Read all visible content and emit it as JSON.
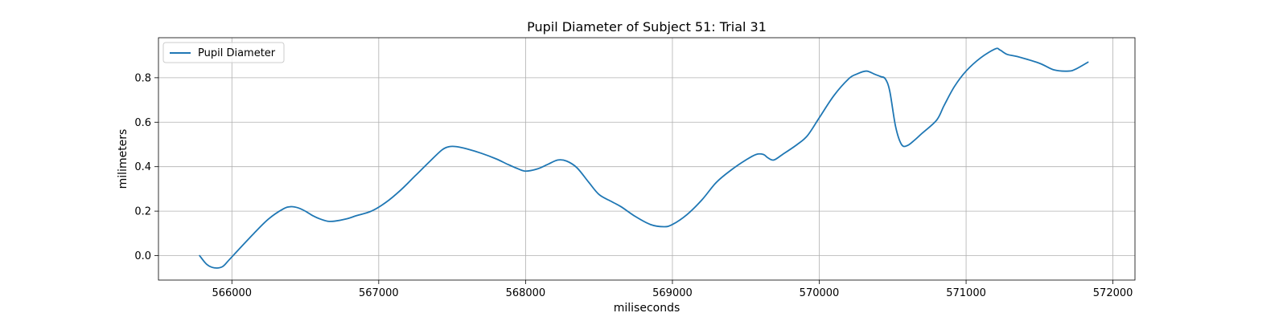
{
  "chart_data": {
    "type": "line",
    "title": "Pupil Diameter of Subject 51: Trial 31",
    "xlabel": "miliseconds",
    "ylabel": "milimeters",
    "xlim": [
      565500,
      572150
    ],
    "ylim": [
      -0.11,
      0.98
    ],
    "xticks": [
      566000,
      567000,
      568000,
      569000,
      570000,
      571000,
      572000
    ],
    "yticks": [
      0.0,
      0.2,
      0.4,
      0.6,
      0.8
    ],
    "ytick_labels": [
      "0.0",
      "0.2",
      "0.4",
      "0.6",
      "0.8"
    ],
    "grid": true,
    "legend_position": "top-left",
    "colors": {
      "series": "#1f77b4",
      "grid": "#b0b0b0",
      "axes": "#000000"
    },
    "series": [
      {
        "name": "Pupil Diameter",
        "x": [
          565780,
          565830,
          565880,
          565935,
          565980,
          566050,
          566150,
          566250,
          566350,
          566400,
          566450,
          566500,
          566550,
          566600,
          566650,
          566700,
          566780,
          566850,
          566950,
          567050,
          567150,
          567250,
          567350,
          567430,
          567480,
          567530,
          567600,
          567700,
          567800,
          567880,
          567950,
          568000,
          568080,
          568150,
          568220,
          568280,
          568350,
          568430,
          568500,
          568580,
          568650,
          568750,
          568850,
          568940,
          569000,
          569100,
          569200,
          569300,
          569400,
          569500,
          569570,
          569620,
          569650,
          569690,
          569750,
          569850,
          569920,
          570000,
          570100,
          570200,
          570250,
          570320,
          570380,
          570420,
          570450,
          570480,
          570520,
          570560,
          570600,
          570650,
          570700,
          570800,
          570850,
          570920,
          571000,
          571100,
          571200,
          571230,
          571280,
          571350,
          571500,
          571600,
          571700,
          571750,
          571830
        ],
        "y": [
          0.0,
          -0.04,
          -0.055,
          -0.05,
          -0.02,
          0.03,
          0.1,
          0.165,
          0.21,
          0.22,
          0.215,
          0.2,
          0.18,
          0.165,
          0.155,
          0.155,
          0.165,
          0.18,
          0.2,
          0.24,
          0.295,
          0.36,
          0.425,
          0.475,
          0.49,
          0.49,
          0.48,
          0.46,
          0.435,
          0.41,
          0.39,
          0.38,
          0.39,
          0.41,
          0.43,
          0.425,
          0.395,
          0.33,
          0.275,
          0.245,
          0.22,
          0.175,
          0.14,
          0.13,
          0.14,
          0.185,
          0.25,
          0.33,
          0.385,
          0.43,
          0.455,
          0.455,
          0.44,
          0.43,
          0.455,
          0.5,
          0.54,
          0.62,
          0.72,
          0.795,
          0.815,
          0.83,
          0.815,
          0.805,
          0.795,
          0.74,
          0.58,
          0.5,
          0.495,
          0.52,
          0.55,
          0.61,
          0.675,
          0.76,
          0.83,
          0.89,
          0.93,
          0.925,
          0.905,
          0.895,
          0.865,
          0.835,
          0.83,
          0.84,
          0.87
        ]
      }
    ]
  }
}
